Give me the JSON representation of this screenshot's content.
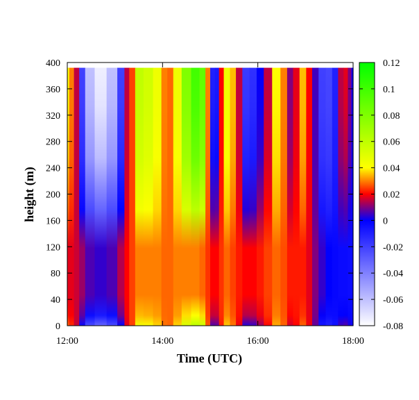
{
  "chart_data": {
    "type": "heatmap",
    "title": "",
    "xlabel": "Time (UTC)",
    "ylabel": "height (m)",
    "x_ticks": [
      "12:00",
      "14:00",
      "16:00",
      "18:00"
    ],
    "xlim": [
      12.0,
      18.0
    ],
    "y_ticks": [
      "0",
      "40",
      "80",
      "120",
      "160",
      "200",
      "240",
      "280",
      "320",
      "360",
      "400"
    ],
    "ylim": [
      0,
      400
    ],
    "data_top_m": 392,
    "colorbar": {
      "ticks": [
        "0.12",
        "0.1",
        "0.08",
        "0.06",
        "0.04",
        "0.02",
        "0",
        "-0.02",
        "-0.04",
        "-0.06",
        "-0.08"
      ],
      "range": [
        -0.08,
        0.12
      ],
      "stops": [
        {
          "v": -0.08,
          "color": "#ffffff"
        },
        {
          "v": -0.04,
          "color": "#8080ff"
        },
        {
          "v": 0.0,
          "color": "#0000ff"
        },
        {
          "v": 0.02,
          "color": "#ff0000"
        },
        {
          "v": 0.04,
          "color": "#ffff00"
        },
        {
          "v": 0.12,
          "color": "#00ff00"
        }
      ]
    },
    "columns": [
      {
        "t": 12.0,
        "top": 0.04,
        "bottom": 0.018
      },
      {
        "t": 12.08,
        "top": 0.03,
        "bottom": 0.018
      },
      {
        "t": 12.2,
        "top": 0.015,
        "bottom": 0.016
      },
      {
        "t": 12.3,
        "top": -0.02,
        "bottom": 0.012
      },
      {
        "t": 12.45,
        "top": -0.06,
        "bottom": 0.006
      },
      {
        "t": 12.7,
        "top": -0.075,
        "bottom": 0.004
      },
      {
        "t": 12.95,
        "top": -0.06,
        "bottom": 0.006
      },
      {
        "t": 13.15,
        "top": -0.02,
        "bottom": 0.014
      },
      {
        "t": 13.25,
        "top": 0.015,
        "bottom": 0.02
      },
      {
        "t": 13.35,
        "top": 0.025,
        "bottom": 0.025
      },
      {
        "t": 13.5,
        "top": 0.06,
        "bottom": 0.03
      },
      {
        "t": 13.7,
        "top": 0.055,
        "bottom": 0.03
      },
      {
        "t": 13.9,
        "top": 0.045,
        "bottom": 0.03
      },
      {
        "t": 14.05,
        "top": 0.03,
        "bottom": 0.028
      },
      {
        "t": 14.15,
        "top": 0.028,
        "bottom": 0.028
      },
      {
        "t": 14.3,
        "top": 0.045,
        "bottom": 0.03
      },
      {
        "t": 14.5,
        "top": 0.08,
        "bottom": 0.03
      },
      {
        "t": 14.7,
        "top": 0.1,
        "bottom": 0.03
      },
      {
        "t": 14.85,
        "top": 0.09,
        "bottom": 0.028
      },
      {
        "t": 14.95,
        "top": 0.03,
        "bottom": 0.024
      },
      {
        "t": 15.05,
        "top": -0.01,
        "bottom": 0.02
      },
      {
        "t": 15.15,
        "top": -0.008,
        "bottom": 0.02
      },
      {
        "t": 15.22,
        "top": 0.02,
        "bottom": 0.024
      },
      {
        "t": 15.35,
        "top": 0.045,
        "bottom": 0.028
      },
      {
        "t": 15.48,
        "top": 0.035,
        "bottom": 0.025
      },
      {
        "t": 15.6,
        "top": 0.015,
        "bottom": 0.022
      },
      {
        "t": 15.75,
        "top": -0.018,
        "bottom": 0.02
      },
      {
        "t": 15.9,
        "top": -0.015,
        "bottom": 0.02
      },
      {
        "t": 16.05,
        "top": 0.0,
        "bottom": 0.022
      },
      {
        "t": 16.2,
        "top": 0.015,
        "bottom": 0.025
      },
      {
        "t": 16.4,
        "top": 0.04,
        "bottom": 0.028
      },
      {
        "t": 16.55,
        "top": 0.03,
        "bottom": 0.026
      },
      {
        "t": 16.68,
        "top": 0.01,
        "bottom": 0.022
      },
      {
        "t": 16.8,
        "top": 0.018,
        "bottom": 0.022
      },
      {
        "t": 16.95,
        "top": 0.035,
        "bottom": 0.022
      },
      {
        "t": 17.08,
        "top": 0.02,
        "bottom": 0.018
      },
      {
        "t": 17.2,
        "top": 0.005,
        "bottom": 0.01
      },
      {
        "t": 17.35,
        "top": -0.02,
        "bottom": 0.004
      },
      {
        "t": 17.5,
        "top": -0.022,
        "bottom": 0.0
      },
      {
        "t": 17.62,
        "top": -0.01,
        "bottom": -0.002
      },
      {
        "t": 17.75,
        "top": 0.015,
        "bottom": -0.003
      },
      {
        "t": 17.85,
        "top": 0.018,
        "bottom": -0.003
      },
      {
        "t": 17.93,
        "top": 0.01,
        "bottom": -0.004
      },
      {
        "t": 18.0,
        "top": 0.0,
        "bottom": -0.004
      }
    ]
  }
}
